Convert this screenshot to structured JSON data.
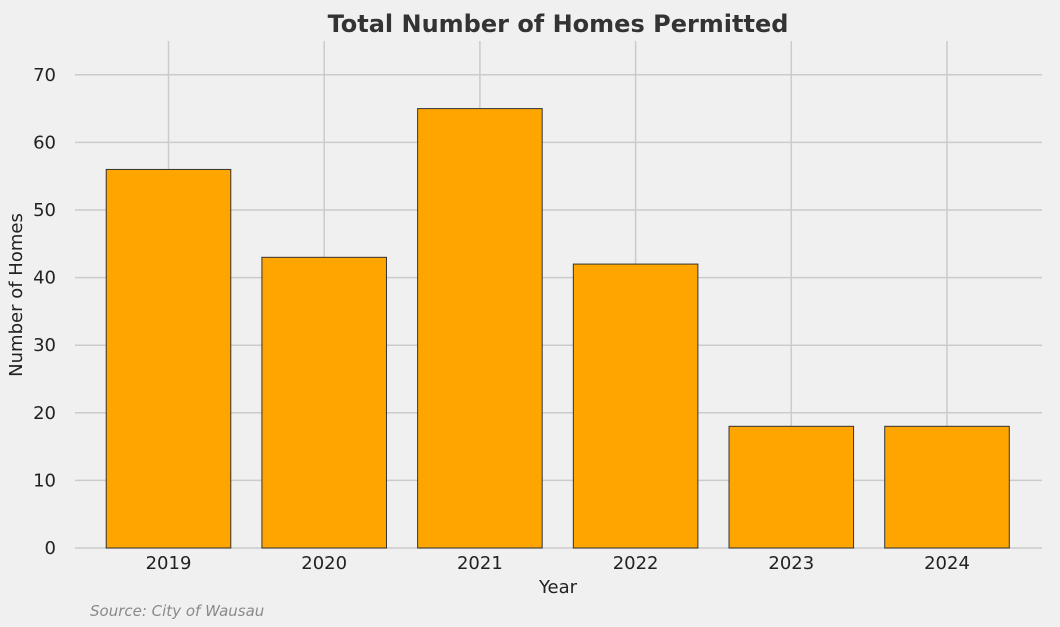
{
  "chart_data": {
    "type": "bar",
    "title": "Total Number of Homes Permitted",
    "xlabel": "Year",
    "ylabel": "Number of Homes",
    "categories": [
      "2019",
      "2020",
      "2021",
      "2022",
      "2023",
      "2024"
    ],
    "values": [
      56,
      43,
      65,
      42,
      18,
      18
    ],
    "ylim": [
      0,
      75
    ],
    "yticks": [
      0,
      10,
      20,
      30,
      40,
      50,
      60,
      70
    ],
    "grid": true,
    "bar_color": "#ffa500",
    "bar_edge_color": "#333333",
    "background_color": "#f0f0f0",
    "grid_color": "#cbcbcb"
  },
  "footer": {
    "source": "Source: City of Wausau"
  }
}
